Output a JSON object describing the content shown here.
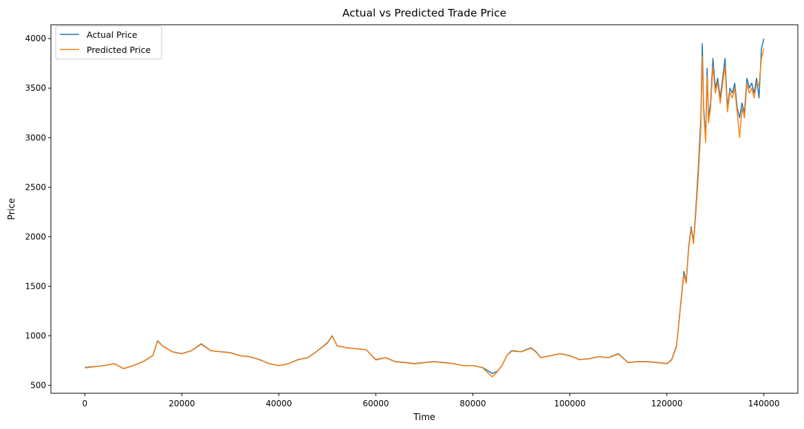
{
  "chart_data": {
    "type": "line",
    "title": "Actual vs Predicted Trade Price",
    "xlabel": "Time",
    "ylabel": "Price",
    "xlim": [
      -7000,
      147000
    ],
    "ylim": [
      420,
      4140
    ],
    "x_ticks": [
      0,
      20000,
      40000,
      60000,
      80000,
      100000,
      120000,
      140000
    ],
    "y_ticks": [
      500,
      1000,
      1500,
      2000,
      2500,
      3000,
      3500,
      4000
    ],
    "grid": false,
    "legend_position": "top-left",
    "series": [
      {
        "name": "Actual Price",
        "color": "#1f77b4",
        "x": [
          0,
          2000,
          4000,
          6000,
          8000,
          10000,
          12000,
          14000,
          15000,
          16000,
          18000,
          20000,
          22000,
          24000,
          26000,
          28000,
          30000,
          32000,
          34000,
          36000,
          38000,
          40000,
          42000,
          44000,
          46000,
          48000,
          50000,
          51000,
          52000,
          54000,
          56000,
          58000,
          60000,
          62000,
          64000,
          66000,
          68000,
          70000,
          72000,
          74000,
          76000,
          78000,
          80000,
          82000,
          84000,
          85000,
          86000,
          87000,
          88000,
          90000,
          92000,
          93000,
          94000,
          96000,
          98000,
          100000,
          102000,
          104000,
          106000,
          108000,
          110000,
          112000,
          114000,
          116000,
          118000,
          120000,
          121000,
          122000,
          123000,
          123500,
          124000,
          124500,
          125000,
          125500,
          126000,
          126500,
          127000,
          127300,
          127600,
          128000,
          128300,
          128600,
          129000,
          129500,
          130000,
          130500,
          131000,
          131500,
          132000,
          132500,
          133000,
          133500,
          134000,
          134500,
          135000,
          135500,
          136000,
          136500,
          137000,
          137500,
          138000,
          138500,
          139000,
          139500,
          140000
        ],
        "y": [
          680,
          690,
          700,
          720,
          670,
          700,
          740,
          800,
          950,
          900,
          840,
          820,
          850,
          920,
          850,
          840,
          830,
          800,
          790,
          760,
          720,
          700,
          720,
          760,
          780,
          850,
          930,
          1000,
          900,
          880,
          870,
          860,
          760,
          780,
          740,
          730,
          720,
          730,
          740,
          730,
          720,
          700,
          700,
          680,
          620,
          640,
          700,
          800,
          850,
          840,
          880,
          840,
          780,
          800,
          820,
          800,
          760,
          770,
          790,
          780,
          820,
          730,
          740,
          740,
          730,
          720,
          760,
          900,
          1400,
          1650,
          1550,
          1900,
          2100,
          1950,
          2300,
          2700,
          3200,
          3950,
          3300,
          3000,
          3700,
          3200,
          3350,
          3800,
          3500,
          3600,
          3400,
          3600,
          3800,
          3300,
          3500,
          3450,
          3550,
          3300,
          3200,
          3350,
          3250,
          3600,
          3500,
          3550,
          3450,
          3600,
          3400,
          3900,
          4000
        ]
      },
      {
        "name": "Predicted Price",
        "color": "#ff7f0e",
        "x": [
          0,
          2000,
          4000,
          6000,
          8000,
          10000,
          12000,
          14000,
          15000,
          16000,
          18000,
          20000,
          22000,
          24000,
          26000,
          28000,
          30000,
          32000,
          34000,
          36000,
          38000,
          40000,
          42000,
          44000,
          46000,
          48000,
          50000,
          51000,
          52000,
          54000,
          56000,
          58000,
          60000,
          62000,
          64000,
          66000,
          68000,
          70000,
          72000,
          74000,
          76000,
          78000,
          80000,
          82000,
          84000,
          85000,
          86000,
          87000,
          88000,
          90000,
          92000,
          93000,
          94000,
          96000,
          98000,
          100000,
          102000,
          104000,
          106000,
          108000,
          110000,
          112000,
          114000,
          116000,
          118000,
          120000,
          121000,
          122000,
          123000,
          123500,
          124000,
          124500,
          125000,
          125500,
          126000,
          126500,
          127000,
          127300,
          127600,
          128000,
          128300,
          128600,
          129000,
          129500,
          130000,
          130500,
          131000,
          131500,
          132000,
          132500,
          133000,
          133500,
          134000,
          134500,
          135000,
          135500,
          136000,
          136500,
          137000,
          137500,
          138000,
          138500,
          139000,
          139500,
          140000
        ],
        "y": [
          675,
          688,
          698,
          718,
          668,
          698,
          738,
          798,
          945,
          898,
          838,
          818,
          848,
          915,
          848,
          838,
          828,
          798,
          788,
          758,
          718,
          698,
          718,
          758,
          778,
          848,
          925,
          995,
          898,
          878,
          868,
          858,
          756,
          778,
          738,
          728,
          718,
          728,
          738,
          728,
          718,
          698,
          698,
          678,
          585,
          635,
          698,
          798,
          845,
          838,
          875,
          836,
          778,
          798,
          818,
          798,
          758,
          768,
          788,
          778,
          815,
          728,
          738,
          738,
          728,
          718,
          755,
          890,
          1380,
          1620,
          1530,
          1880,
          2080,
          1930,
          2250,
          2620,
          3100,
          3820,
          3250,
          2950,
          3620,
          3150,
          3300,
          3720,
          3450,
          3560,
          3350,
          3550,
          3720,
          3260,
          3460,
          3400,
          3500,
          3250,
          3000,
          3300,
          3200,
          3550,
          3450,
          3500,
          3400,
          3550,
          3530,
          3800,
          3900
        ]
      }
    ]
  }
}
